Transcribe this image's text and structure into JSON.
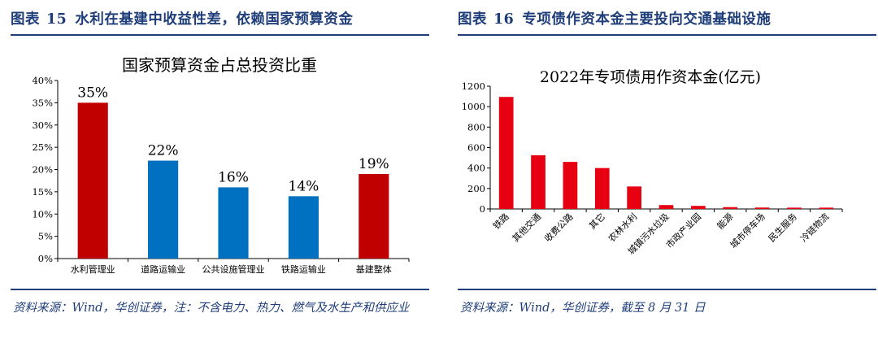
{
  "left": {
    "fig_label": "图表",
    "fig_num": "15",
    "fig_title": "水利在基建中收益性差，依赖国家预算资金",
    "source": "资料来源：Wind，华创证券，注：不含电力、热力、燃气及水生产和供应业"
  },
  "right": {
    "fig_label": "图表",
    "fig_num": "16",
    "fig_title": "专项债作资本金主要投向交通基础设施",
    "source": "资料来源：Wind，华创证券，截至 8 月 31 日"
  },
  "chart_data": [
    {
      "type": "bar",
      "title": "国家预算资金占总投资比重",
      "categories": [
        "水利管理业",
        "道路运输业",
        "公共设施管理业",
        "铁路运输业",
        "基建整体"
      ],
      "values": [
        35,
        22,
        16,
        14,
        19
      ],
      "data_labels": [
        "35%",
        "22%",
        "16%",
        "14%",
        "19%"
      ],
      "bar_colors": [
        "#c00000",
        "#0070c0",
        "#0070c0",
        "#0070c0",
        "#c00000"
      ],
      "ylim": [
        0,
        40
      ],
      "yticks": [
        "0%",
        "5%",
        "10%",
        "15%",
        "20%",
        "25%",
        "30%",
        "35%",
        "40%"
      ],
      "xlabel": "",
      "ylabel": "",
      "grid": false
    },
    {
      "type": "bar",
      "title": "2022年专项债用作资本金(亿元)",
      "categories": [
        "铁路",
        "其他交通",
        "收费公路",
        "其它",
        "农林水利",
        "城镇污水垃圾",
        "市政产业园",
        "能源",
        "城市停车场",
        "民生服务",
        "冷链物流"
      ],
      "values": [
        1095,
        525,
        460,
        400,
        220,
        38,
        30,
        18,
        14,
        13,
        13
      ],
      "bar_color": "#e60012",
      "ylim": [
        0,
        1200
      ],
      "yticks": [
        "0",
        "200",
        "400",
        "600",
        "800",
        "1000",
        "1200"
      ],
      "xlabel": "",
      "ylabel": "",
      "grid": false
    }
  ]
}
